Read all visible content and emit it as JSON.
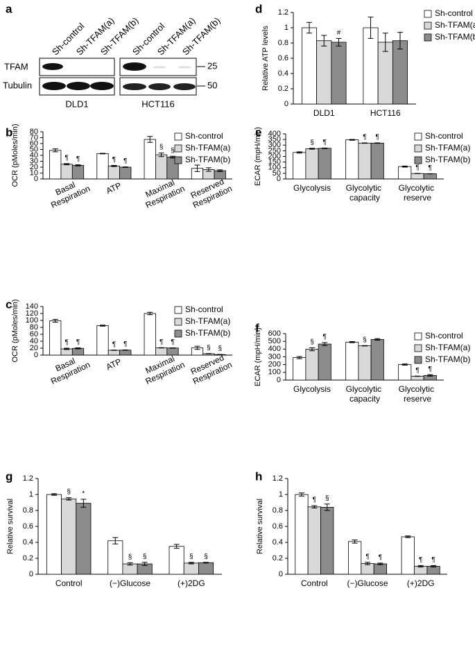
{
  "western_blot": {
    "panel": "a",
    "lanes": [
      "Sh-control",
      "Sh-TFAM(a)",
      "Sh-TFAM(b)",
      "Sh-control",
      "Sh-TFAM(a)",
      "Sh-TFAM(b)"
    ],
    "proteins": [
      "TFAM",
      "Tubulin"
    ],
    "cell_lines": [
      "DLD1",
      "HCT116"
    ],
    "size_markers": [
      25,
      50
    ]
  },
  "chart_data": [
    {
      "type": "bar",
      "panel": "b",
      "y_label": "OCR (pMoles/min)",
      "categories": [
        "Basal Respiration",
        "ATP",
        "Maximal Respiration",
        "Reserved Respiration"
      ],
      "series": [
        {
          "name": "Sh-control",
          "color": "#ffffff",
          "values": [
            48.5,
            43,
            67,
            18
          ],
          "errors": [
            2.5,
            0.5,
            5,
            5.5
          ],
          "markers": [
            null,
            null,
            null,
            null
          ]
        },
        {
          "name": "Sh-TFAM(a)",
          "color": "#d9d9d9",
          "values": [
            25,
            22,
            41,
            16
          ],
          "errors": [
            1,
            1,
            3,
            3
          ],
          "markers": [
            "¶",
            "¶",
            "§",
            null
          ]
        },
        {
          "name": "Sh-TFAM(b)",
          "color": "#8c8c8c",
          "values": [
            23,
            20,
            37,
            14
          ],
          "errors": [
            1,
            0.5,
            1.5,
            1.5
          ],
          "markers": [
            "¶",
            "¶",
            "§",
            null
          ]
        }
      ],
      "ylim": [
        0,
        80
      ],
      "yticks": [
        0,
        10,
        20,
        30,
        40,
        50,
        60,
        70,
        80
      ],
      "legend": true
    },
    {
      "type": "bar",
      "panel": "c",
      "y_label": "OCR (pMoles/min)",
      "categories": [
        "Basal Respiration",
        "ATP",
        "Maximal Respiration",
        "Reserved Respiration"
      ],
      "series": [
        {
          "name": "Sh-control",
          "color": "#ffffff",
          "values": [
            99,
            85,
            120,
            21
          ],
          "errors": [
            4,
            1.5,
            3.5,
            4.5
          ],
          "markers": [
            null,
            null,
            null,
            null
          ]
        },
        {
          "name": "Sh-TFAM(a)",
          "color": "#d9d9d9",
          "values": [
            18,
            14,
            21,
            4
          ],
          "errors": [
            2,
            0.5,
            0.5,
            0.5
          ],
          "markers": [
            "¶",
            "¶",
            "¶",
            "§"
          ]
        },
        {
          "name": "Sh-TFAM(b)",
          "color": "#8c8c8c",
          "values": [
            19.5,
            14.5,
            20.5,
            1.5
          ],
          "errors": [
            1.5,
            0.5,
            0.5,
            0.5
          ],
          "markers": [
            "¶",
            "¶",
            "¶",
            "§"
          ]
        }
      ],
      "ylim": [
        0,
        140
      ],
      "yticks": [
        0,
        20,
        40,
        60,
        80,
        100,
        120,
        140
      ],
      "legend": true
    },
    {
      "type": "bar",
      "panel": "d",
      "y_label": "Relative ATP levels",
      "categories": [
        "DLD1",
        "HCT116"
      ],
      "series": [
        {
          "name": "Sh-control",
          "color": "#ffffff",
          "values": [
            1.0,
            1.0
          ],
          "errors": [
            0.07,
            0.14
          ],
          "markers": [
            null,
            null
          ]
        },
        {
          "name": "Sh-TFAM(a)",
          "color": "#d9d9d9",
          "values": [
            0.83,
            0.81
          ],
          "errors": [
            0.07,
            0.12
          ],
          "markers": [
            null,
            null
          ]
        },
        {
          "name": "Sh-TFAM(b)",
          "color": "#8c8c8c",
          "values": [
            0.81,
            0.83
          ],
          "errors": [
            0.05,
            0.11
          ],
          "markers": [
            "#",
            null
          ]
        }
      ],
      "ylim": [
        0,
        1.2
      ],
      "yticks": [
        0,
        0.2,
        0.4,
        0.6,
        0.8,
        1,
        1.2
      ],
      "legend": true
    },
    {
      "type": "bar",
      "panel": "e",
      "y_label": "ECAR (mpH/min)",
      "categories": [
        "Glycolysis",
        "Glycolytic capacity",
        "Glycolytic reserve"
      ],
      "series": [
        {
          "name": "Sh-control",
          "color": "#ffffff",
          "values": [
            235,
            347,
            110
          ],
          "errors": [
            6,
            4,
            5
          ],
          "markers": [
            null,
            null,
            null
          ]
        },
        {
          "name": "Sh-TFAM(a)",
          "color": "#d9d9d9",
          "values": [
            268,
            318,
            48
          ],
          "errors": [
            4,
            2,
            1
          ],
          "markers": [
            "§",
            "¶",
            "¶"
          ]
        },
        {
          "name": "Sh-TFAM(b)",
          "color": "#8c8c8c",
          "values": [
            272,
            318,
            46
          ],
          "errors": [
            3,
            2,
            1
          ],
          "markers": [
            "¶",
            "¶",
            "¶"
          ]
        }
      ],
      "ylim": [
        0,
        400
      ],
      "yticks": [
        0,
        50,
        100,
        150,
        200,
        250,
        300,
        350,
        400
      ],
      "legend": true
    },
    {
      "type": "bar",
      "panel": "f",
      "y_label": "ECAR (mpH/min)",
      "categories": [
        "Glycolysis",
        "Glycolytic capacity",
        "Glycolytic reserve"
      ],
      "series": [
        {
          "name": "Sh-control",
          "color": "#ffffff",
          "values": [
            290,
            490,
            200
          ],
          "errors": [
            15,
            7,
            8
          ],
          "markers": [
            null,
            null,
            null
          ]
        },
        {
          "name": "Sh-TFAM(a)",
          "color": "#d9d9d9",
          "values": [
            398,
            443,
            50
          ],
          "errors": [
            20,
            3,
            2
          ],
          "markers": [
            "§",
            "§",
            "¶"
          ]
        },
        {
          "name": "Sh-TFAM(b)",
          "color": "#8c8c8c",
          "values": [
            465,
            525,
            60
          ],
          "errors": [
            20,
            10,
            10
          ],
          "markers": [
            "¶",
            null,
            "¶"
          ]
        }
      ],
      "ylim": [
        0,
        600
      ],
      "yticks": [
        0,
        100,
        200,
        300,
        400,
        500,
        600
      ],
      "legend": true
    },
    {
      "type": "bar",
      "panel": "g",
      "y_label": "Relative survival",
      "categories": [
        "Control",
        "(−)Glucose",
        "(+)2DG"
      ],
      "series": [
        {
          "name": "Sh-control",
          "color": "#ffffff",
          "values": [
            1.0,
            0.42,
            0.35
          ],
          "errors": [
            0.01,
            0.04,
            0.025
          ],
          "markers": [
            null,
            null,
            null
          ]
        },
        {
          "name": "Sh-TFAM(a)",
          "color": "#d9d9d9",
          "values": [
            0.945,
            0.13,
            0.14
          ],
          "errors": [
            0.015,
            0.015,
            0.01
          ],
          "markers": [
            "§",
            "§",
            "§"
          ]
        },
        {
          "name": "Sh-TFAM(b)",
          "color": "#8c8c8c",
          "values": [
            0.89,
            0.13,
            0.145
          ],
          "errors": [
            0.05,
            0.02,
            0.005
          ],
          "markers": [
            "*",
            "§",
            "§"
          ]
        }
      ],
      "ylim": [
        0,
        1.2
      ],
      "yticks": [
        0,
        0.2,
        0.4,
        0.6,
        0.8,
        1,
        1.2
      ],
      "legend": false
    },
    {
      "type": "bar",
      "panel": "h",
      "y_label": "Relative survival",
      "categories": [
        "Control",
        "(−)Glucose",
        "(+)2DG"
      ],
      "series": [
        {
          "name": "Sh-control",
          "color": "#ffffff",
          "values": [
            1.0,
            0.41,
            0.47
          ],
          "errors": [
            0.02,
            0.02,
            0.01
          ],
          "markers": [
            null,
            null,
            null
          ]
        },
        {
          "name": "Sh-TFAM(a)",
          "color": "#d9d9d9",
          "values": [
            0.845,
            0.135,
            0.1
          ],
          "errors": [
            0.015,
            0.015,
            0.01
          ],
          "markers": [
            "¶",
            "¶",
            "¶"
          ]
        },
        {
          "name": "Sh-TFAM(b)",
          "color": "#8c8c8c",
          "values": [
            0.84,
            0.13,
            0.1
          ],
          "errors": [
            0.04,
            0.01,
            0.01
          ],
          "markers": [
            "§",
            "¶",
            "¶"
          ]
        }
      ],
      "ylim": [
        0,
        1.2
      ],
      "yticks": [
        0,
        0.2,
        0.4,
        0.6,
        0.8,
        1,
        1.2
      ],
      "legend": false
    }
  ]
}
